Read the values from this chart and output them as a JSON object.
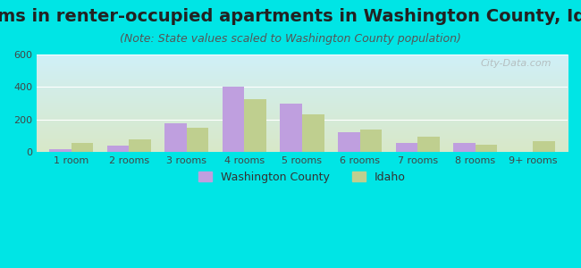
{
  "title": "Rooms in renter-occupied apartments in Washington County, Idaho",
  "subtitle": "(Note: State values scaled to Washington County population)",
  "categories": [
    "1 room",
    "2 rooms",
    "3 rooms",
    "4 rooms",
    "5 rooms",
    "6 rooms",
    "7 rooms",
    "8 rooms",
    "9+ rooms"
  ],
  "washington_county": [
    20,
    40,
    175,
    400,
    300,
    120,
    55,
    55,
    0
  ],
  "idaho": [
    55,
    80,
    150,
    325,
    230,
    140,
    95,
    45,
    65
  ],
  "washington_color": "#bf9fdf",
  "idaho_color": "#bfcf8f",
  "background_outer": "#00e5e5",
  "background_plot_top": "#d0f0f8",
  "background_plot_bottom": "#d8e8c8",
  "ylim": [
    0,
    600
  ],
  "yticks": [
    0,
    200,
    400,
    600
  ],
  "bar_width": 0.38,
  "title_fontsize": 14,
  "subtitle_fontsize": 9,
  "legend_label_washington": "Washington County",
  "legend_label_idaho": "Idaho",
  "watermark": "City-Data.com"
}
